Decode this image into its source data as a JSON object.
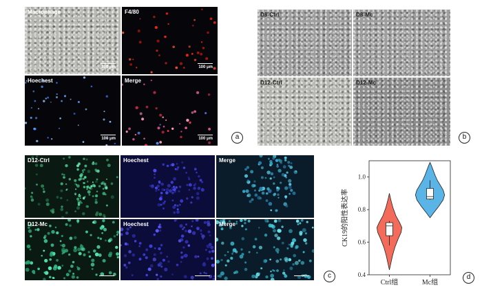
{
  "panel_a": {
    "badge": "a",
    "tiles": [
      {
        "label": "Macrophage",
        "scale": "100 μm"
      },
      {
        "label": "F4/80",
        "scale": "100 μm"
      },
      {
        "label": "Hoechest",
        "scale": "100 μm"
      },
      {
        "label": "Merge",
        "scale": "100 μm"
      }
    ]
  },
  "panel_b": {
    "badge": "b",
    "tiles": [
      {
        "label": "D8-Ctrl"
      },
      {
        "label": "D8-Mc"
      },
      {
        "label": "D12-Ctrl"
      },
      {
        "label": "D12-Mc"
      }
    ]
  },
  "panel_c": {
    "badge": "c",
    "tiles": [
      {
        "label": "D12-Ctrl"
      },
      {
        "label": "Hoechest"
      },
      {
        "label": "Merge"
      },
      {
        "label": "D12-Mc"
      },
      {
        "label": "Hoechest"
      },
      {
        "label": "Merge"
      }
    ]
  },
  "panel_d": {
    "badge": "d",
    "chart_data": {
      "type": "violin",
      "title": "",
      "xlabel": "",
      "ylabel": "CK19的阳性表达率",
      "categories": [
        "Ctrl组",
        "Mc组"
      ],
      "ylim": [
        0.4,
        1.1
      ],
      "yticks": [
        0.4,
        0.6,
        0.8,
        1.0
      ],
      "ytick_labels": [
        "0.4",
        "0.6",
        "0.8",
        "1.0"
      ],
      "colors": {
        "Ctrl组": "#f26b5b",
        "Mc组": "#5ab4e6"
      },
      "series": [
        {
          "name": "Ctrl组",
          "density": [
            [
              0.43,
              0.0
            ],
            [
              0.47,
              0.1
            ],
            [
              0.52,
              0.22
            ],
            [
              0.57,
              0.38
            ],
            [
              0.62,
              0.6
            ],
            [
              0.66,
              0.8
            ],
            [
              0.69,
              0.85
            ],
            [
              0.72,
              0.7
            ],
            [
              0.76,
              0.45
            ],
            [
              0.81,
              0.25
            ],
            [
              0.86,
              0.1
            ],
            [
              0.9,
              0.0
            ]
          ],
          "box": {
            "q1": 0.64,
            "median": 0.7,
            "q3": 0.72,
            "whisker_low": 0.58,
            "whisker_high": 0.73
          }
        },
        {
          "name": "Mc组",
          "density": [
            [
              0.75,
              0.0
            ],
            [
              0.78,
              0.25
            ],
            [
              0.82,
              0.6
            ],
            [
              0.86,
              0.9
            ],
            [
              0.89,
              1.0
            ],
            [
              0.92,
              0.9
            ],
            [
              0.95,
              0.7
            ],
            [
              0.98,
              0.5
            ],
            [
              1.01,
              0.35
            ],
            [
              1.04,
              0.22
            ],
            [
              1.07,
              0.1
            ],
            [
              1.09,
              0.0
            ]
          ],
          "box": {
            "q1": 0.865,
            "median": 0.88,
            "q3": 0.93,
            "whisker_low": 0.86,
            "whisker_high": 0.98
          }
        }
      ]
    }
  }
}
